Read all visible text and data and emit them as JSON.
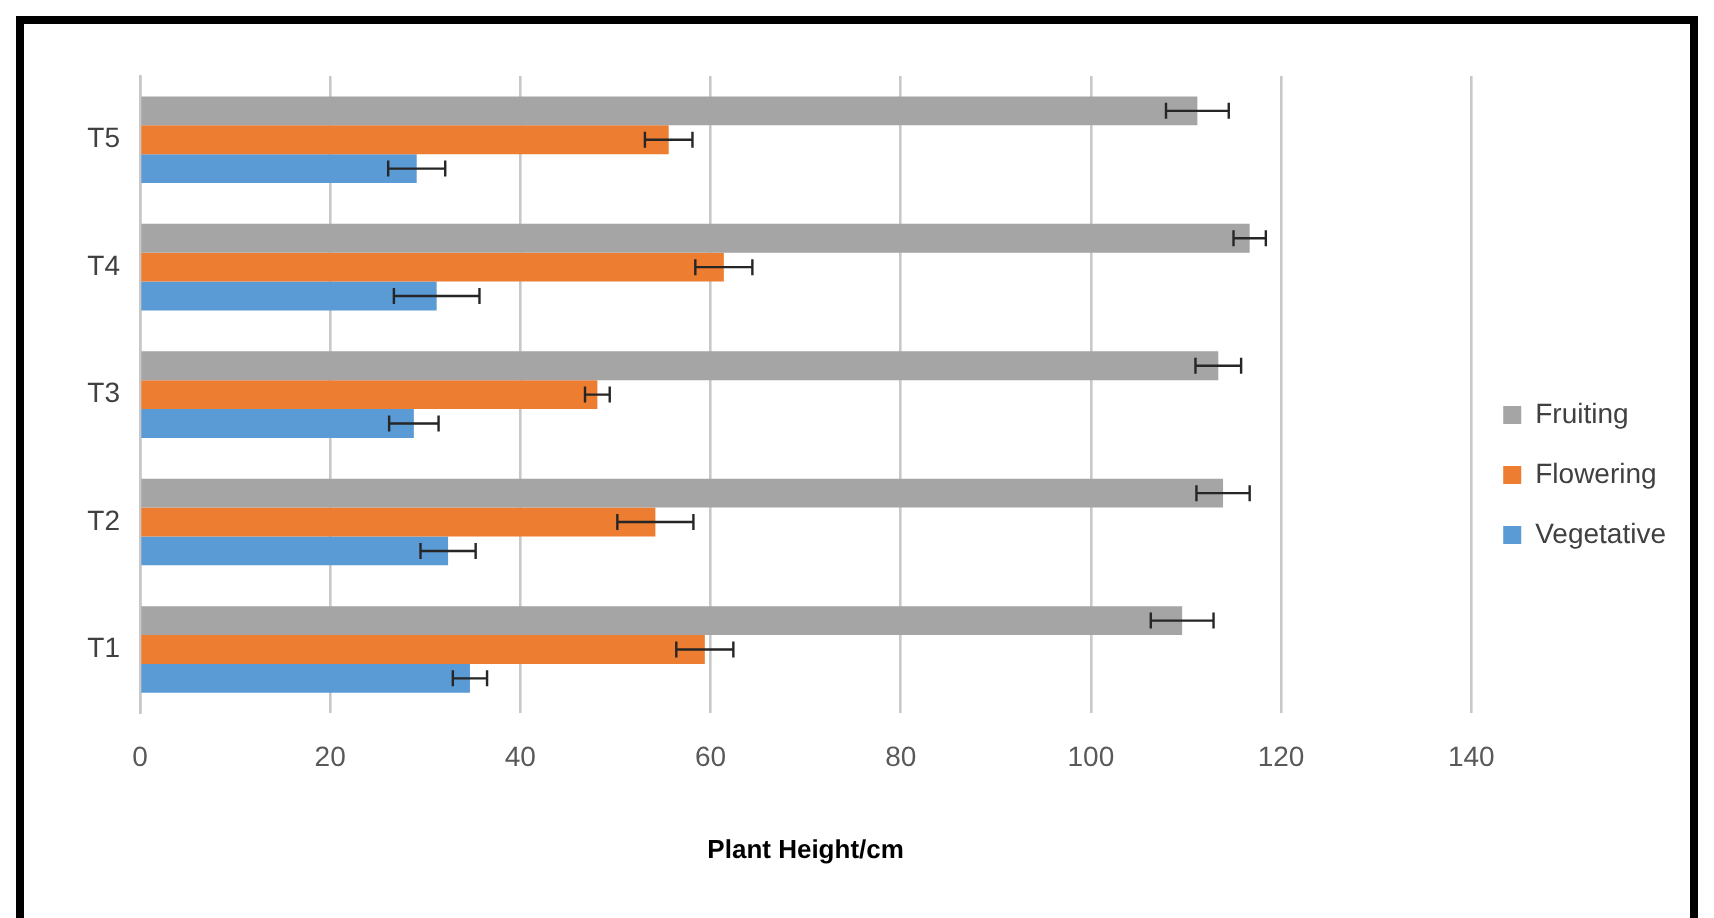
{
  "chart_data": {
    "type": "bar",
    "orientation": "horizontal",
    "xlabel": "Plant Height/cm",
    "categories": [
      "T5",
      "T4",
      "T3",
      "T2",
      "T1"
    ],
    "series": [
      {
        "name": "Fruiting",
        "color": "#a5a5a5",
        "values": [
          111.2,
          116.7,
          113.4,
          113.9,
          109.6
        ],
        "errors": [
          3.3,
          1.7,
          2.4,
          2.8,
          3.3
        ]
      },
      {
        "name": "Flowering",
        "color": "#ed7d31",
        "values": [
          55.6,
          61.4,
          48.1,
          54.2,
          59.4
        ],
        "errors": [
          2.5,
          3,
          1.3,
          4,
          3
        ]
      },
      {
        "name": "Vegetative",
        "color": "#5b9bd5",
        "values": [
          29.1,
          31.2,
          28.8,
          32.4,
          34.7
        ],
        "errors": [
          3,
          4.5,
          2.6,
          2.9,
          1.8
        ]
      }
    ],
    "xlim": [
      0,
      140
    ],
    "xticks": [
      0,
      20,
      40,
      60,
      80,
      100,
      120,
      140
    ],
    "grid": "x",
    "legend": "right"
  }
}
